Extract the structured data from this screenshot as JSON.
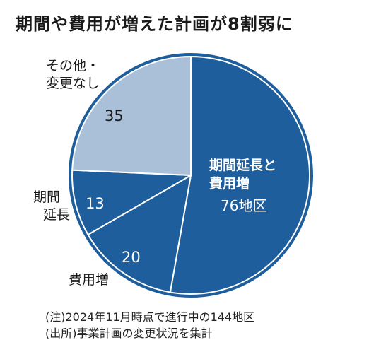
{
  "chart_data": {
    "type": "pie",
    "title": "期間や費用が増えた計画が8割弱に",
    "slices": [
      {
        "label": "期間延長と費用増",
        "value": 76,
        "value_label": "76地区",
        "color": "#1f5e9c"
      },
      {
        "label": "費用増",
        "value": 20,
        "value_label": "20",
        "color": "#1f5e9c"
      },
      {
        "label": "期間延長",
        "value": 13,
        "value_label": "13",
        "color": "#1f5e9c"
      },
      {
        "label": "その他・変更なし",
        "value": 35,
        "value_label": "35",
        "color": "#a9c0d8"
      }
    ],
    "total": 144
  },
  "labels": {
    "main_line1": "期間延長と",
    "main_line2": "費用増",
    "main_value": "76地区",
    "hiyou": "費用増",
    "hiyou_value": "20",
    "kikan_line1": "期間",
    "kikan_line2": "延長",
    "kikan_value": "13",
    "other_line1": "その他・",
    "other_line2": "変更なし",
    "other_value": "35"
  },
  "notes": {
    "line1": "(注)2024年11月時点で進行中の144地区",
    "line2": "(出所)事業計画の変更状況を集計"
  },
  "colors": {
    "dark": "#1f5e9c",
    "light": "#a9c0d8",
    "stroke": "#ffffff"
  }
}
